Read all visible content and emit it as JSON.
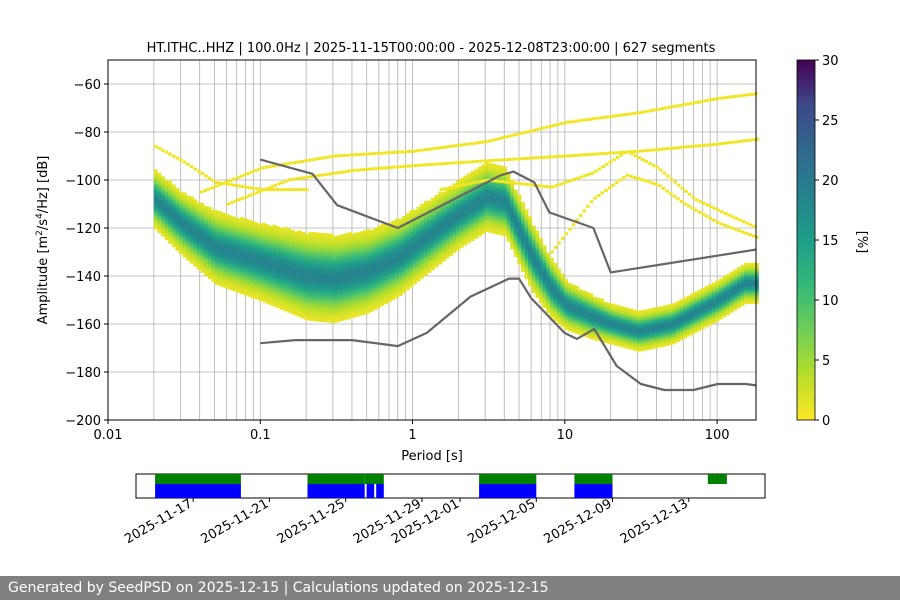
{
  "chart_data": [
    {
      "type": "heatmap",
      "title": "HT.ITHC..HHZ | 100.0Hz | 2025-11-15T00:00:00 - 2025-12-08T23:00:00 | 627 segments",
      "xlabel": "Period [s]",
      "ylabel_parts": [
        "Amplitude [m",
        "2",
        "/s",
        "4",
        "/Hz] [dB]"
      ],
      "x_scale": "log",
      "xlim": [
        0.01,
        180
      ],
      "ylim": [
        -200,
        -50
      ],
      "x_ticks": [
        {
          "v": 0.01,
          "label": "0.01"
        },
        {
          "v": 0.1,
          "label": "0.1"
        },
        {
          "v": 1,
          "label": "1"
        },
        {
          "v": 10,
          "label": "10"
        },
        {
          "v": 100,
          "label": "100"
        }
      ],
      "y_ticks": [
        {
          "v": -60,
          "label": "−60"
        },
        {
          "v": -80,
          "label": "−80"
        },
        {
          "v": -100,
          "label": "−100"
        },
        {
          "v": -120,
          "label": "−120"
        },
        {
          "v": -140,
          "label": "−140"
        },
        {
          "v": -160,
          "label": "−160"
        },
        {
          "v": -180,
          "label": "−180"
        },
        {
          "v": -200,
          "label": "−200"
        }
      ],
      "grid": true,
      "colorbar": {
        "label": "[%]",
        "min": 0,
        "max": 30,
        "ticks": [
          {
            "v": 0,
            "label": "0"
          },
          {
            "v": 5,
            "label": "5"
          },
          {
            "v": 10,
            "label": "10"
          },
          {
            "v": 15,
            "label": "15"
          },
          {
            "v": 20,
            "label": "20"
          },
          {
            "v": 25,
            "label": "25"
          },
          {
            "v": 30,
            "label": "30"
          }
        ],
        "colormap": "viridis_r"
      },
      "mode_curve": {
        "x": [
          0.02,
          0.03,
          0.05,
          0.1,
          0.2,
          0.3,
          0.5,
          0.8,
          1.2,
          2,
          3,
          4,
          5,
          6,
          8,
          10,
          15,
          20,
          30,
          50,
          100,
          150
        ],
        "y": [
          -108,
          -118,
          -128,
          -134,
          -140,
          -141,
          -138,
          -132,
          -124,
          -114,
          -107,
          -109,
          -122,
          -132,
          -145,
          -152,
          -157,
          -160,
          -163,
          -160,
          -150,
          -143
        ]
      },
      "spread": {
        "x": [
          0.02,
          0.03,
          0.05,
          0.1,
          0.2,
          0.3,
          0.5,
          0.8,
          1.2,
          2,
          3,
          4,
          5,
          6,
          8,
          10,
          15,
          20,
          30,
          50,
          100,
          150
        ],
        "half_width": [
          12,
          13,
          15,
          16,
          18,
          18,
          17,
          16,
          15,
          14,
          14,
          14,
          14,
          14,
          12,
          10,
          9,
          8,
          8,
          8,
          8,
          8
        ]
      },
      "sparse_curves": [
        {
          "x": [
            0.04,
            0.1,
            0.3,
            1,
            3,
            10,
            30,
            100,
            180
          ],
          "y": [
            -105,
            -95,
            -90,
            -88,
            -84,
            -76,
            -72,
            -66,
            -64
          ]
        },
        {
          "x": [
            0.06,
            0.15,
            0.4,
            1,
            3,
            10,
            30,
            100,
            180
          ],
          "y": [
            -110,
            -100,
            -96,
            -94,
            -92,
            -90,
            -88,
            -85,
            -83
          ]
        },
        {
          "x": [
            1.5,
            3,
            8,
            15,
            25,
            40,
            70,
            120,
            180
          ],
          "y": [
            -104,
            -100,
            -103,
            -97,
            -88,
            -95,
            -108,
            -115,
            -120
          ]
        },
        {
          "x": [
            8,
            15,
            25,
            40,
            60,
            100,
            180
          ],
          "y": [
            -130,
            -108,
            -98,
            -102,
            -110,
            -118,
            -124
          ]
        },
        {
          "x": [
            0.02,
            0.03,
            0.05,
            0.1,
            0.2
          ],
          "y": [
            -86,
            -92,
            -101,
            -104,
            -104
          ]
        }
      ],
      "noise_model_high": {
        "x": [
          0.1,
          0.22,
          0.32,
          0.8,
          3.8,
          4.6,
          6.3,
          7.9,
          15.4,
          20,
          180
        ],
        "y": [
          -91.5,
          -97.4,
          -110.5,
          -120,
          -98,
          -96.5,
          -101,
          -113.5,
          -120,
          -138.5,
          -129
        ]
      },
      "noise_model_low": {
        "x": [
          0.1,
          0.17,
          0.4,
          0.8,
          1.24,
          2.4,
          4.3,
          5,
          6,
          10,
          12,
          15.6,
          21.9,
          31.6,
          45,
          70,
          101,
          154,
          180
        ],
        "y": [
          -168,
          -166.7,
          -166.7,
          -169.2,
          -163.7,
          -148.6,
          -141.1,
          -141.1,
          -149.2,
          -163.8,
          -166.2,
          -162.1,
          -177.5,
          -185,
          -187.5,
          -187.5,
          -185,
          -185,
          -185.6
        ]
      }
    },
    {
      "type": "timeline",
      "date_ticks": [
        "2025-11-17",
        "2025-11-21",
        "2025-11-25",
        "2025-11-29",
        "2025-12-01",
        "2025-12-05",
        "2025-12-09",
        "2025-12-13"
      ],
      "date_range": [
        "2025-11-14",
        "2025-12-17"
      ],
      "green_bars": [
        [
          "2025-11-15",
          "2025-11-19.5"
        ],
        [
          "2025-11-23",
          "2025-11-26"
        ],
        [
          "2025-11-26",
          "2025-11-27"
        ],
        [
          "2025-12-02",
          "2025-12-05"
        ],
        [
          "2025-12-07",
          "2025-12-09"
        ],
        [
          "2025-12-14",
          "2025-12-15"
        ]
      ],
      "blue_bars": [
        [
          "2025-11-15",
          "2025-11-19.5"
        ],
        [
          "2025-11-23",
          "2025-11-26"
        ],
        [
          "2025-11-26.1",
          "2025-11-26.5"
        ],
        [
          "2025-11-26.6",
          "2025-11-27"
        ],
        [
          "2025-12-02",
          "2025-12-05"
        ],
        [
          "2025-12-07",
          "2025-12-09"
        ]
      ]
    }
  ],
  "footer": {
    "text": "Generated by SeedPSD on 2025-12-15 | Calculations updated on 2025-12-15"
  }
}
